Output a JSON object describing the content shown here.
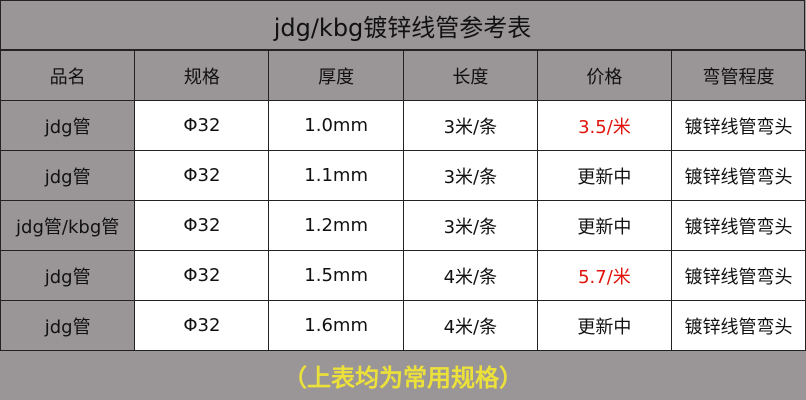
{
  "title": "jdg/kbg镀锌线管参考表",
  "headers": [
    "品名",
    "规格",
    "厚度",
    "长度",
    "价格",
    "弯管程度"
  ],
  "rows": [
    {
      "name": "jdg管",
      "spec": "Φ32",
      "thickness": "1.0mm",
      "length": "3米/条",
      "price": "3.5/米",
      "price_highlight": true,
      "bend": "镀锌线管弯头"
    },
    {
      "name": "jdg管",
      "spec": "Φ32",
      "thickness": "1.1mm",
      "length": "3米/条",
      "price": "更新中",
      "price_highlight": false,
      "bend": "镀锌线管弯头"
    },
    {
      "name": "jdg管/kbg管",
      "spec": "Φ32",
      "thickness": "1.2mm",
      "length": "3米/条",
      "price": "更新中",
      "price_highlight": false,
      "bend": "镀锌线管弯头"
    },
    {
      "name": "jdg管",
      "spec": "Φ32",
      "thickness": "1.5mm",
      "length": "4米/条",
      "price": "5.7/米",
      "price_highlight": true,
      "bend": "镀锌线管弯头"
    },
    {
      "name": "jdg管",
      "spec": "Φ32",
      "thickness": "1.6mm",
      "length": "4米/条",
      "price": "更新中",
      "price_highlight": false,
      "bend": "镀锌线管弯头"
    }
  ],
  "footer": "（上表均为常用规格）",
  "colors": {
    "header_bg": "#9a9597",
    "price_highlight": "#e0140c",
    "footer_text": "#ece03a"
  }
}
